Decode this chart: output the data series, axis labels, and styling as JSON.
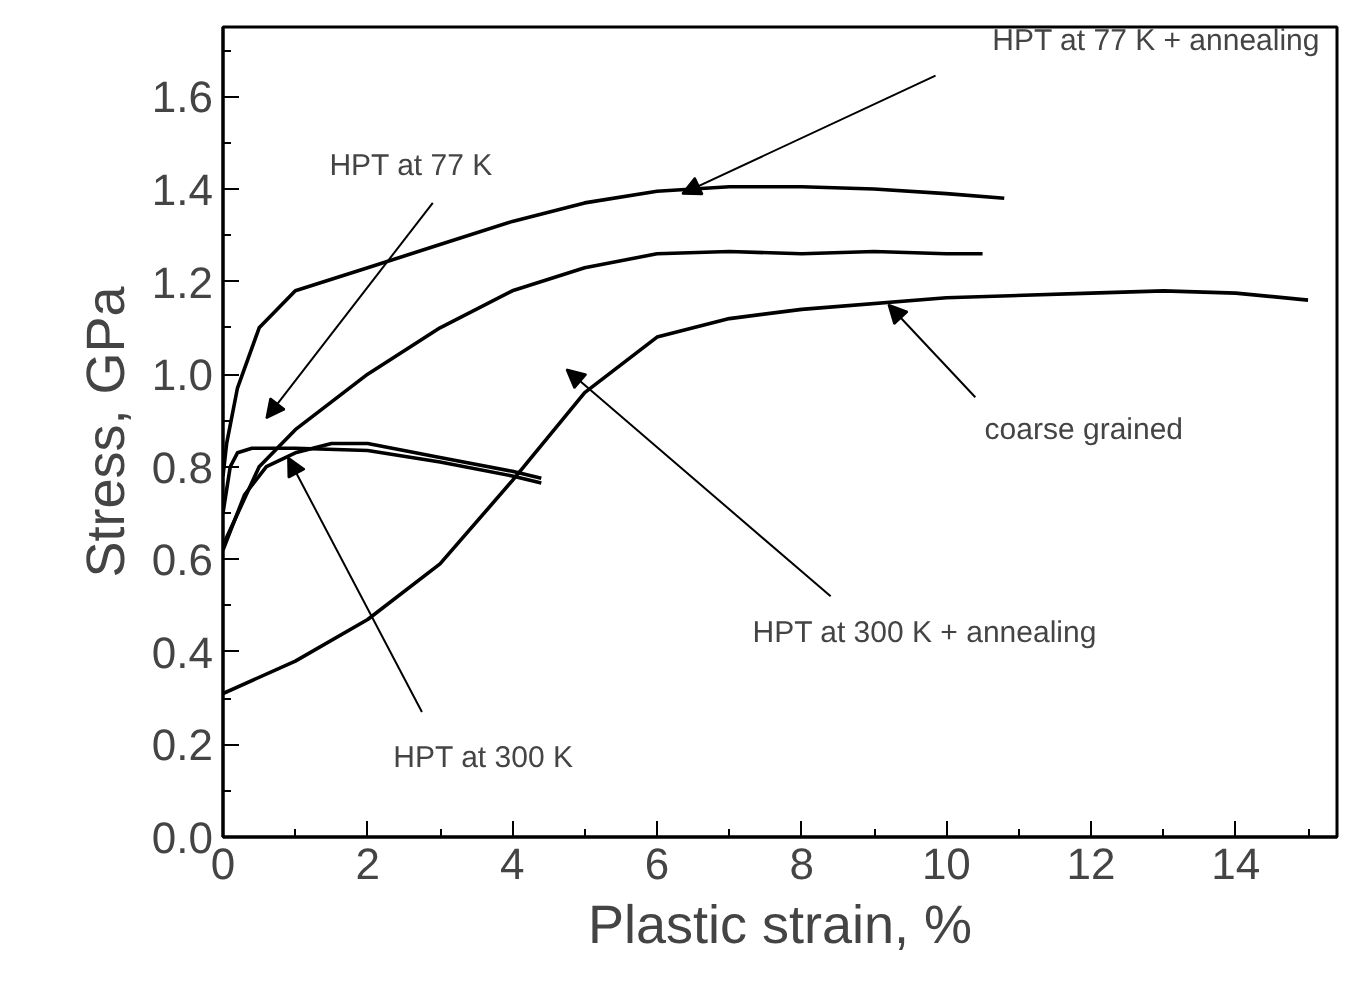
{
  "chart_data": {
    "type": "line",
    "xlabel": "Plastic strain, %",
    "ylabel": "Stress, GPa",
    "xlim": [
      0,
      15.4
    ],
    "ylim": [
      0,
      1.75
    ],
    "xticks": [
      0,
      2,
      4,
      6,
      8,
      10,
      12,
      14
    ],
    "yticks": [
      {
        "value": 0,
        "label": "0.0"
      },
      0.2,
      0.4,
      0.6,
      0.8,
      {
        "value": 1,
        "label": "1.0"
      },
      1.2,
      1.4,
      1.6
    ],
    "grid": false,
    "series": [
      {
        "color": "#000000",
        "x": [
          0,
          1,
          2,
          3,
          4,
          5,
          6,
          7,
          8,
          10,
          12,
          13,
          14,
          15
        ],
        "values": [
          0.31,
          0.38,
          0.47,
          0.59,
          0.77,
          0.96,
          1.08,
          1.12,
          1.14,
          1.165,
          1.175,
          1.18,
          1.175,
          1.16
        ]
      },
      {
        "color": "#000000",
        "x": [
          0,
          0.05,
          0.2,
          0.5,
          1,
          2,
          3,
          4,
          5,
          6,
          7,
          8,
          9,
          10,
          10.8
        ],
        "values": [
          0.78,
          0.85,
          0.97,
          1.1,
          1.18,
          1.23,
          1.28,
          1.33,
          1.37,
          1.395,
          1.405,
          1.405,
          1.4,
          1.39,
          1.38
        ]
      },
      {
        "color": "#000000",
        "x": [
          0,
          0.5,
          1,
          2,
          3,
          4,
          5,
          6,
          7,
          8,
          9,
          10,
          10.5
        ],
        "values": [
          0.63,
          0.8,
          0.88,
          1.0,
          1.1,
          1.18,
          1.23,
          1.26,
          1.265,
          1.26,
          1.265,
          1.26,
          1.26
        ]
      },
      {
        "color": "#000000",
        "x": [
          0,
          0.1,
          0.2,
          0.4,
          1,
          2,
          3,
          4,
          4.4
        ],
        "values": [
          0.7,
          0.8,
          0.83,
          0.84,
          0.84,
          0.835,
          0.81,
          0.78,
          0.765
        ]
      },
      {
        "color": "#000000",
        "x": [
          0,
          0.3,
          0.6,
          1,
          1.5,
          2,
          3,
          4,
          4.4
        ],
        "values": [
          0.62,
          0.74,
          0.8,
          0.83,
          0.85,
          0.85,
          0.82,
          0.79,
          0.775
        ]
      }
    ],
    "annotations": [
      "HPT at 77 K + annealing",
      "HPT at 77 K",
      {
        "text": "coarse grained",
        "x": 9.2,
        "y": 1.15
      },
      "HPT at 300 K + annealing",
      {
        "text": "HPT at 300 K",
        "x": 0.9,
        "y": 0.82
      }
    ]
  }
}
